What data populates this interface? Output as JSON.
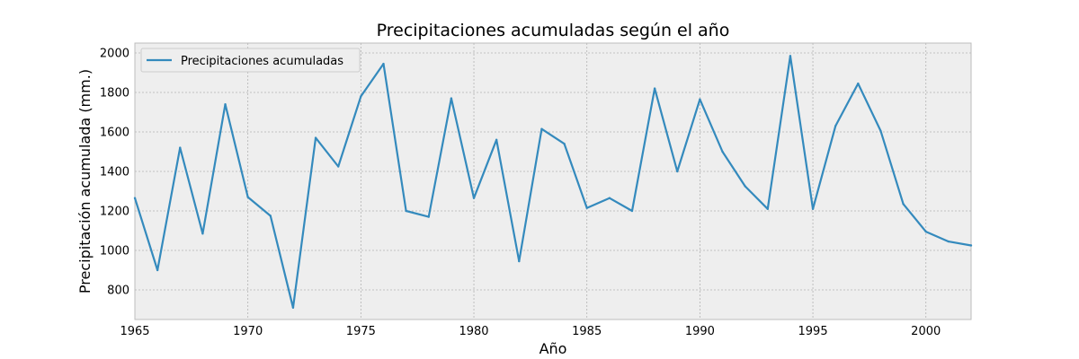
{
  "chart_data": {
    "type": "line",
    "title": "Precipitaciones acumuladas según el año",
    "xlabel": "Año",
    "ylabel": "Precipitación acumulada (mm.)",
    "xlim": [
      1965,
      2002
    ],
    "ylim": [
      650,
      2050
    ],
    "xticks": [
      "1965",
      "1970",
      "1975",
      "1980",
      "1985",
      "1990",
      "1995",
      "2000"
    ],
    "yticks": [
      "800",
      "1000",
      "1200",
      "1400",
      "1600",
      "1800",
      "2000"
    ],
    "grid": true,
    "legend_position": "top-left",
    "colors": {
      "series": "#348abd",
      "plot_bg": "#eeeeee",
      "grid": "#b2b2b2"
    },
    "series": [
      {
        "name": "Precipitaciones acumuladas",
        "x": [
          1965,
          1966,
          1967,
          1968,
          1969,
          1970,
          1971,
          1972,
          1973,
          1974,
          1975,
          1976,
          1977,
          1978,
          1979,
          1980,
          1981,
          1982,
          1983,
          1984,
          1985,
          1986,
          1987,
          1988,
          1989,
          1990,
          1991,
          1992,
          1993,
          1994,
          1995,
          1996,
          1997,
          1998,
          1999,
          2000,
          2001,
          2002
        ],
        "values": [
          1265,
          900,
          1520,
          1085,
          1740,
          1270,
          1175,
          710,
          1570,
          1425,
          1780,
          1945,
          1200,
          1170,
          1770,
          1265,
          1560,
          945,
          1615,
          1540,
          1215,
          1265,
          1200,
          1820,
          1400,
          1765,
          1500,
          1325,
          1210,
          1985,
          1210,
          1630,
          1845,
          1605,
          1235,
          1095,
          1045,
          1025
        ]
      }
    ]
  }
}
